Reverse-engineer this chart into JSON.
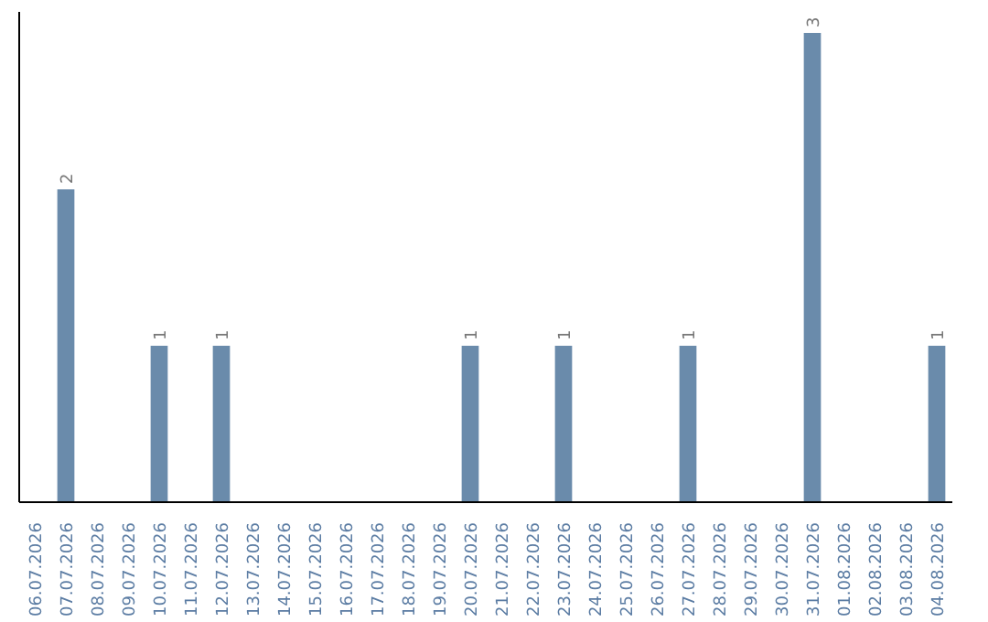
{
  "chart_data": {
    "type": "bar",
    "categories": [
      "06.07.2026",
      "07.07.2026",
      "08.07.2026",
      "09.07.2026",
      "10.07.2026",
      "11.07.2026",
      "12.07.2026",
      "13.07.2026",
      "14.07.2026",
      "15.07.2026",
      "16.07.2026",
      "17.07.2026",
      "18.07.2026",
      "19.07.2026",
      "20.07.2026",
      "21.07.2026",
      "22.07.2026",
      "23.07.2026",
      "24.07.2026",
      "25.07.2026",
      "26.07.2026",
      "27.07.2026",
      "28.07.2026",
      "29.07.2026",
      "30.07.2026",
      "31.07.2026",
      "01.08.2026",
      "02.08.2026",
      "03.08.2026",
      "04.08.2026"
    ],
    "values": [
      0,
      2,
      0,
      0,
      1,
      0,
      1,
      0,
      0,
      0,
      0,
      0,
      0,
      0,
      1,
      0,
      0,
      1,
      0,
      0,
      0,
      1,
      0,
      0,
      0,
      3,
      0,
      0,
      0,
      1
    ],
    "value_labels": [
      null,
      "2",
      null,
      null,
      "1",
      null,
      "1",
      null,
      null,
      null,
      null,
      null,
      null,
      null,
      "1",
      null,
      null,
      "1",
      null,
      null,
      null,
      "1",
      null,
      null,
      null,
      "3",
      null,
      null,
      null,
      "1"
    ],
    "color": "#6a8bab",
    "tick_labels": "x",
    "grid": false
  }
}
